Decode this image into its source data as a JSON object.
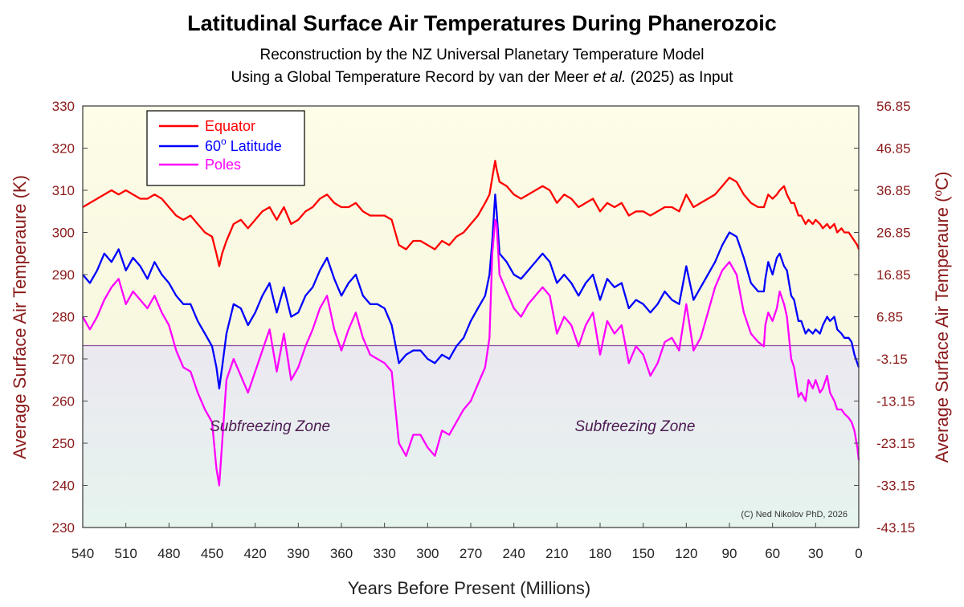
{
  "chart_data": {
    "type": "line",
    "title": "Latitudinal Surface Air Temperatures During Phanerozoic",
    "subtitle_1": "Reconstruction by the NZ Universal Planetary Temperature Model",
    "subtitle_2_pre": "Using a Global Temperature Record by van der Meer ",
    "subtitle_2_italic": "et al.",
    "subtitle_2_post": " (2025) as Input",
    "xlabel": "Years Before Present (Millions)",
    "ylabel_left": "Average Surface Air Temperaure (K)",
    "ylabel_right": "Average Surface Air Temperaure (",
    "ylabel_right_sup": "o",
    "ylabel_right_end": "C)",
    "xlim": [
      540,
      0
    ],
    "ylim": [
      230,
      330
    ],
    "x_ticks": [
      "540",
      "510",
      "480",
      "450",
      "420",
      "390",
      "360",
      "330",
      "300",
      "270",
      "240",
      "210",
      "180",
      "150",
      "120",
      "90",
      "60",
      "30",
      "0"
    ],
    "y_ticks_left": [
      "330",
      "320",
      "310",
      "300",
      "290",
      "280",
      "270",
      "260",
      "250",
      "240",
      "230"
    ],
    "y_ticks_right": [
      "56.85",
      "46.85",
      "36.85",
      "26.85",
      "16.85",
      "6.85",
      "-3.15",
      "-13.15",
      "-23.15",
      "-33.15",
      "-43.15"
    ],
    "freezing_line_k": 273.15,
    "annotations": {
      "zone_label": "Subfreezing Zone",
      "zone_x_positions": [
        460,
        220
      ],
      "zone_y_value": 254,
      "credit": "(C) Ned Nikolov PhD, 2026"
    },
    "legend": {
      "position": "top-left",
      "entries": [
        {
          "label": "Equator",
          "sup": ""
        },
        {
          "label": "60",
          "sup": "o",
          "suffix": " Latitude"
        },
        {
          "label": "Poles",
          "sup": ""
        }
      ]
    },
    "series": [
      {
        "name": "Equator",
        "color": "#ff0000",
        "x": [
          540,
          535,
          530,
          525,
          520,
          515,
          510,
          505,
          500,
          495,
          490,
          485,
          480,
          475,
          470,
          465,
          460,
          455,
          450,
          447,
          445,
          443,
          440,
          435,
          430,
          425,
          420,
          415,
          410,
          405,
          400,
          395,
          390,
          385,
          380,
          375,
          370,
          365,
          360,
          355,
          350,
          345,
          340,
          335,
          330,
          325,
          320,
          315,
          310,
          305,
          300,
          295,
          290,
          285,
          280,
          275,
          270,
          265,
          260,
          257,
          255,
          253,
          252,
          250,
          245,
          240,
          235,
          230,
          225,
          220,
          215,
          210,
          205,
          200,
          195,
          190,
          185,
          180,
          175,
          170,
          165,
          160,
          155,
          150,
          145,
          140,
          135,
          130,
          125,
          120,
          115,
          110,
          105,
          100,
          95,
          90,
          85,
          80,
          75,
          70,
          66,
          65,
          63,
          60,
          57,
          55,
          52,
          50,
          47,
          45,
          42,
          40,
          37,
          35,
          32,
          30,
          27,
          25,
          22,
          20,
          17,
          15,
          12,
          10,
          7,
          5,
          3,
          1,
          0
        ],
        "y": [
          306,
          307,
          308,
          309,
          310,
          309,
          310,
          309,
          308,
          308,
          309,
          308,
          306,
          304,
          303,
          304,
          302,
          300,
          299,
          295,
          292,
          295,
          298,
          302,
          303,
          301,
          303,
          305,
          306,
          303,
          306,
          302,
          303,
          305,
          306,
          308,
          309,
          307,
          306,
          306,
          307,
          305,
          304,
          304,
          304,
          303,
          297,
          296,
          298,
          298,
          297,
          296,
          298,
          297,
          299,
          300,
          302,
          304,
          307,
          309,
          313,
          317,
          315,
          312,
          311,
          309,
          308,
          309,
          310,
          311,
          310,
          307,
          309,
          308,
          306,
          307,
          308,
          305,
          307,
          306,
          307,
          304,
          305,
          305,
          304,
          305,
          306,
          306,
          305,
          309,
          306,
          307,
          308,
          309,
          311,
          313,
          312,
          309,
          307,
          306,
          306,
          307,
          309,
          308,
          309,
          310,
          311,
          309,
          307,
          307,
          304,
          304,
          302,
          303,
          302,
          303,
          302,
          301,
          302,
          301,
          302,
          300,
          301,
          300,
          300,
          299,
          298,
          297,
          296
        ]
      },
      {
        "name": "60 Latitude",
        "color": "#0000ff",
        "x": [
          540,
          535,
          530,
          525,
          520,
          515,
          510,
          505,
          500,
          495,
          490,
          485,
          480,
          475,
          470,
          465,
          460,
          455,
          450,
          447,
          445,
          443,
          440,
          435,
          430,
          425,
          420,
          415,
          410,
          405,
          400,
          395,
          390,
          385,
          380,
          375,
          370,
          365,
          360,
          355,
          350,
          345,
          340,
          335,
          330,
          325,
          320,
          315,
          310,
          305,
          300,
          295,
          290,
          285,
          280,
          275,
          270,
          265,
          260,
          257,
          255,
          253,
          252,
          250,
          245,
          240,
          235,
          230,
          225,
          220,
          215,
          210,
          205,
          200,
          195,
          190,
          185,
          180,
          175,
          170,
          165,
          160,
          155,
          150,
          145,
          140,
          135,
          130,
          125,
          120,
          115,
          110,
          105,
          100,
          95,
          90,
          85,
          80,
          75,
          70,
          66,
          65,
          63,
          60,
          57,
          55,
          52,
          50,
          47,
          45,
          42,
          40,
          37,
          35,
          32,
          30,
          27,
          25,
          22,
          20,
          17,
          15,
          12,
          10,
          7,
          5,
          3,
          1,
          0
        ],
        "y": [
          290,
          288,
          291,
          295,
          293,
          296,
          291,
          294,
          292,
          289,
          293,
          290,
          288,
          285,
          283,
          283,
          279,
          276,
          273,
          268,
          263,
          268,
          276,
          283,
          282,
          278,
          281,
          285,
          288,
          281,
          287,
          280,
          281,
          285,
          287,
          291,
          294,
          289,
          285,
          288,
          290,
          285,
          283,
          283,
          282,
          278,
          269,
          271,
          272,
          272,
          270,
          269,
          271,
          270,
          273,
          275,
          279,
          282,
          285,
          290,
          298,
          309,
          305,
          295,
          293,
          290,
          289,
          291,
          293,
          295,
          293,
          288,
          290,
          288,
          285,
          288,
          290,
          284,
          289,
          287,
          288,
          282,
          284,
          283,
          281,
          283,
          286,
          284,
          283,
          292,
          284,
          287,
          290,
          293,
          297,
          300,
          299,
          294,
          288,
          286,
          286,
          289,
          293,
          290,
          294,
          295,
          292,
          291,
          285,
          284,
          279,
          279,
          276,
          277,
          276,
          277,
          276,
          278,
          280,
          279,
          280,
          277,
          276,
          275,
          275,
          274,
          271,
          269,
          268
        ]
      },
      {
        "name": "Poles",
        "color": "#ff00ff",
        "x": [
          540,
          535,
          530,
          525,
          520,
          515,
          510,
          505,
          500,
          495,
          490,
          485,
          480,
          475,
          470,
          465,
          460,
          455,
          450,
          447,
          445,
          443,
          440,
          435,
          430,
          425,
          420,
          415,
          410,
          405,
          400,
          395,
          390,
          385,
          380,
          375,
          370,
          365,
          360,
          355,
          350,
          345,
          340,
          335,
          330,
          325,
          320,
          315,
          310,
          305,
          300,
          295,
          290,
          285,
          280,
          275,
          270,
          265,
          260,
          257,
          255,
          253,
          252,
          250,
          245,
          240,
          235,
          230,
          225,
          220,
          215,
          210,
          205,
          200,
          195,
          190,
          185,
          180,
          175,
          170,
          165,
          160,
          155,
          150,
          145,
          140,
          135,
          130,
          125,
          120,
          115,
          110,
          105,
          100,
          95,
          90,
          85,
          80,
          75,
          70,
          66,
          65,
          63,
          60,
          57,
          55,
          52,
          50,
          47,
          45,
          42,
          40,
          37,
          35,
          32,
          30,
          27,
          25,
          22,
          20,
          17,
          15,
          12,
          10,
          7,
          5,
          3,
          1,
          0
        ],
        "y": [
          280,
          277,
          280,
          284,
          287,
          289,
          283,
          286,
          284,
          282,
          285,
          281,
          278,
          272,
          268,
          267,
          262,
          258,
          255,
          244,
          240,
          250,
          265,
          270,
          266,
          262,
          267,
          272,
          277,
          267,
          276,
          265,
          268,
          273,
          277,
          282,
          285,
          277,
          272,
          277,
          281,
          275,
          271,
          270,
          269,
          267,
          250,
          247,
          252,
          252,
          249,
          247,
          253,
          252,
          255,
          258,
          260,
          264,
          268,
          275,
          295,
          303,
          302,
          290,
          286,
          282,
          280,
          283,
          285,
          287,
          285,
          276,
          280,
          278,
          273,
          278,
          281,
          271,
          279,
          276,
          278,
          269,
          273,
          271,
          266,
          269,
          274,
          275,
          272,
          283,
          272,
          275,
          281,
          287,
          291,
          293,
          290,
          281,
          276,
          274,
          273,
          278,
          281,
          279,
          282,
          286,
          283,
          280,
          270,
          268,
          261,
          262,
          260,
          265,
          263,
          265,
          262,
          263,
          266,
          262,
          260,
          258,
          258,
          257,
          256,
          255,
          253,
          249,
          246
        ]
      }
    ]
  }
}
